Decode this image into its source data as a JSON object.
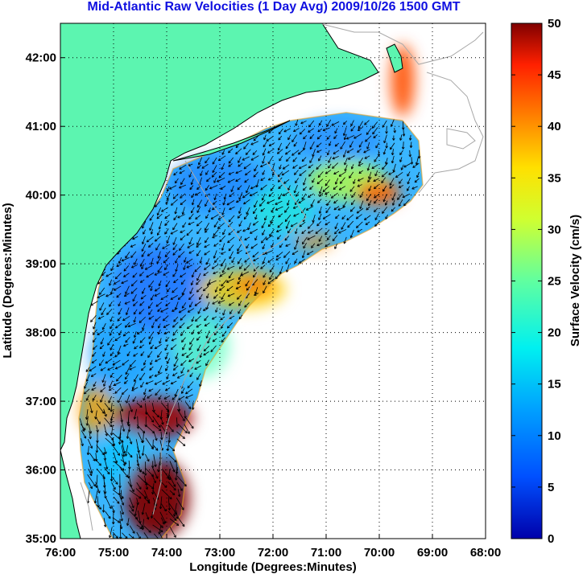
{
  "title": "Mid-Atlantic Raw Velocities (1 Day Avg) 2009/10/26 1500 GMT",
  "xaxis": {
    "label": "Longitude (Degrees:Minutes)",
    "ticks": [
      "76:00",
      "75:00",
      "74:00",
      "73:00",
      "72:00",
      "71:00",
      "70:00",
      "69:00",
      "68:00"
    ]
  },
  "yaxis": {
    "label": "Latitude (Degrees:Minutes)",
    "ticks": [
      "35:00",
      "36:00",
      "37:00",
      "38:00",
      "39:00",
      "40:00",
      "41:00",
      "42:00"
    ]
  },
  "colorbar": {
    "label": "Surface Velocity (cm/s)",
    "ticks": [
      "0",
      "5",
      "10",
      "15",
      "20",
      "25",
      "30",
      "35",
      "40",
      "45",
      "50"
    ]
  },
  "colors": {
    "title": "#1010e0",
    "land": "#5cf5b0",
    "coast_outline": "#000000",
    "bathymetry": "#a8a8a8",
    "grid": "#000000"
  },
  "chart_data": {
    "type": "heatmap",
    "title": "Mid-Atlantic Raw Velocities (1 Day Avg) 2009/10/26 1500 GMT",
    "xlabel": "Longitude (Degrees:Minutes)",
    "ylabel": "Latitude (Degrees:Minutes)",
    "xlim": [
      -76,
      -68
    ],
    "ylim": [
      35,
      42.5
    ],
    "colorbar_range": [
      0,
      50
    ],
    "colorbar_label": "Surface Velocity (cm/s)",
    "colormap": "jet",
    "grid": true,
    "grid_style": "dotted"
  }
}
